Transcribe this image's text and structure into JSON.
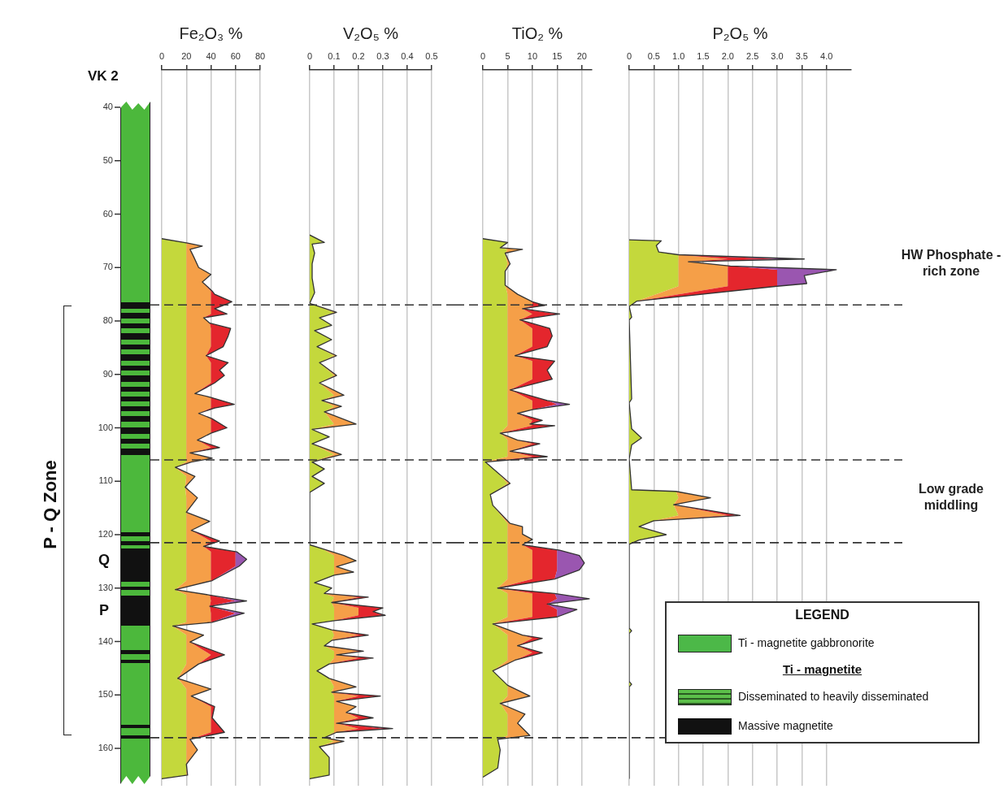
{
  "chart_data": [
    {
      "type": "area",
      "orientation": "horizontal",
      "stacked": true,
      "title": "Fe₂O₃ %",
      "xlim": [
        0,
        80
      ],
      "xticks": [
        0,
        20,
        40,
        60,
        80
      ],
      "ylim": [
        167,
        33
      ],
      "yticks": [
        40,
        50,
        60,
        70,
        80,
        90,
        100,
        110,
        120,
        130,
        140,
        150,
        160
      ],
      "grid": "x",
      "x": [
        64.6,
        65.4,
        66,
        66.6,
        68,
        70,
        71.3,
        72.7,
        74.4,
        75,
        76.4,
        77.1,
        77.7,
        78.7,
        79.4,
        80.4,
        81.4,
        82.8,
        84.8,
        86.5,
        87.8,
        89.2,
        90.2,
        91.6,
        93.6,
        94.3,
        95.6,
        96.3,
        97.3,
        98.3,
        100,
        101,
        102.3,
        103.7,
        104.7,
        105.7,
        106.4,
        107.4,
        109.1,
        111.1,
        113.1,
        115.8,
        117.5,
        119.2,
        121.2,
        122.2,
        123.2,
        124.6,
        125.9,
        128.6,
        130.3,
        131.3,
        132.4,
        133.4,
        134.7,
        136.4,
        137.1,
        138.8,
        140.1,
        142.5,
        144.2,
        146.9,
        148.9,
        150.2,
        152.2,
        154.3,
        157,
        158.3,
        160.3,
        163,
        165,
        165.7
      ],
      "series": [
        {
          "color": "#c4d83c",
          "values": [
            0,
            20,
            20,
            20,
            20,
            20,
            20,
            20,
            20,
            20,
            20,
            20,
            20,
            20,
            20,
            20,
            20,
            20,
            20,
            20,
            20,
            20,
            20,
            20,
            20,
            20,
            20,
            20,
            20,
            20,
            20,
            20,
            20,
            20,
            20,
            20,
            20,
            11,
            20,
            19,
            20,
            20,
            20,
            20,
            20,
            20,
            20,
            20,
            20,
            20,
            11,
            20,
            20,
            20,
            20,
            20,
            9,
            20,
            20,
            20,
            20,
            13,
            20,
            20,
            20,
            20,
            20,
            20,
            20,
            20,
            20,
            0
          ]
        },
        {
          "color": "#f59f48",
          "values": [
            0,
            1,
            13,
            3,
            6,
            10,
            20,
            13,
            20,
            20,
            20,
            20,
            20,
            20,
            14,
            19,
            20,
            20,
            20,
            16,
            20,
            20,
            20,
            20,
            7,
            20,
            20,
            20,
            10,
            20,
            20,
            20,
            9,
            20,
            3,
            20,
            4,
            0,
            7,
            0,
            9,
            0,
            19,
            4,
            20,
            14,
            20,
            20,
            20,
            20,
            0,
            19,
            20,
            19,
            20,
            20,
            0,
            14,
            3,
            20,
            10,
            0,
            20,
            4,
            20,
            20,
            20,
            3,
            9,
            0,
            1,
            0
          ]
        },
        {
          "color": "#e4262d",
          "values": [
            0,
            0,
            0,
            0,
            0,
            0,
            0,
            0,
            1,
            3,
            17,
            10,
            3,
            13,
            0,
            0,
            16,
            14,
            10,
            0,
            14,
            7,
            11,
            3,
            0,
            0,
            19,
            3,
            0,
            1,
            13,
            0,
            0,
            7,
            0,
            1,
            0,
            0,
            0,
            0,
            0,
            0,
            0,
            0,
            7,
            0,
            20,
            20,
            20,
            1,
            0,
            0,
            20,
            0,
            20,
            1,
            0,
            0,
            0,
            11,
            0,
            0,
            0,
            0,
            3,
            1,
            11,
            0,
            0,
            0,
            0,
            0
          ]
        },
        {
          "color": "#9a56b0",
          "values": [
            0,
            0,
            0,
            0,
            0,
            0,
            0,
            0,
            0,
            0,
            0,
            0,
            0,
            0,
            0,
            0,
            0,
            0,
            0,
            0,
            0,
            0,
            0,
            0,
            0,
            0,
            0,
            0,
            0,
            0,
            0,
            0,
            0,
            0,
            0,
            0,
            0,
            0,
            0,
            0,
            0,
            0,
            0,
            0,
            0,
            0,
            1,
            9,
            3,
            0,
            0,
            0,
            9,
            0,
            7,
            0,
            0,
            0,
            0,
            0,
            0,
            0,
            0,
            0,
            0,
            0,
            0,
            0,
            0,
            0,
            0,
            0
          ]
        }
      ],
      "ref_lines": [
        {
          "axis": "y",
          "value": 77,
          "line_style": "dashed",
          "color": "#333333"
        },
        {
          "axis": "y",
          "value": 106,
          "line_style": "dashed",
          "color": "#333333"
        },
        {
          "axis": "y",
          "value": 121.5,
          "line_style": "dashed",
          "color": "#333333"
        },
        {
          "axis": "y",
          "value": 158,
          "line_style": "dashed",
          "color": "#333333"
        }
      ]
    },
    {
      "type": "area",
      "orientation": "horizontal",
      "stacked": true,
      "title": "V₂O₅ %",
      "xlim": [
        0,
        0.5
      ],
      "xticks": [
        0,
        0.1,
        0.2,
        0.3,
        0.4,
        0.5
      ],
      "ylim": [
        167,
        33
      ],
      "tick_labels": "x",
      "grid": "x",
      "x": [
        63.9,
        65.3,
        65.6,
        67.3,
        69.3,
        72,
        74.7,
        76.7,
        78.4,
        79.4,
        80.8,
        81.8,
        83.5,
        84.8,
        86.5,
        87.8,
        90.2,
        91.6,
        93.9,
        94.9,
        96,
        97,
        99.3,
        100.3,
        101.7,
        103,
        105,
        106.4,
        107.7,
        109.1,
        110.4,
        112.1,
        121.9,
        122.6,
        123.9,
        124.9,
        126,
        127,
        127.6,
        129,
        130,
        131,
        131.7,
        132.7,
        133.7,
        134.4,
        135.1,
        136.1,
        136.7,
        137.8,
        138.8,
        139.8,
        140.8,
        141.8,
        142.5,
        143.1,
        144.2,
        145.5,
        146.9,
        148.5,
        149.5,
        150.2,
        151.2,
        152.2,
        153.3,
        154.3,
        155.3,
        156.3,
        157,
        158,
        158.7,
        159.7,
        161.7,
        165,
        165.7
      ],
      "series": [
        {
          "color": "#c4d83c",
          "values": [
            0,
            0.06,
            0.01,
            0.02,
            0.01,
            0.01,
            0.02,
            0,
            0.1,
            0.04,
            0.09,
            0.02,
            0.09,
            0.03,
            0.1,
            0.04,
            0.1,
            0.04,
            0.1,
            0.05,
            0.1,
            0.06,
            0.1,
            0.01,
            0.08,
            0.01,
            0.1,
            0.01,
            0.06,
            0.01,
            0.06,
            0,
            0,
            0.05,
            0.1,
            0.1,
            0.1,
            0.1,
            0.1,
            0.02,
            0.09,
            0.06,
            0.1,
            0.09,
            0.1,
            0.1,
            0.1,
            0.1,
            0.01,
            0.09,
            0.1,
            0.09,
            0.06,
            0.1,
            0.1,
            0.1,
            0.08,
            0.03,
            0.08,
            0.1,
            0.09,
            0.1,
            0.1,
            0.1,
            0.1,
            0.1,
            0.1,
            0.1,
            0.1,
            0.06,
            0.1,
            0.04,
            0.08,
            0.08,
            0
          ]
        },
        {
          "color": "#f59f48",
          "values": [
            0,
            0,
            0,
            0,
            0,
            0,
            0,
            0,
            0.01,
            0,
            0,
            0,
            0,
            0,
            0.01,
            0,
            0.01,
            0,
            0.04,
            0,
            0.03,
            0,
            0.09,
            0,
            0,
            0,
            0.03,
            0,
            0,
            0,
            0,
            0,
            0,
            0,
            0.04,
            0.09,
            0.01,
            0.08,
            0,
            0,
            0,
            0,
            0.1,
            0,
            0.1,
            0.1,
            0.1,
            0,
            0,
            0,
            0.1,
            0,
            0,
            0.1,
            0.01,
            0.1,
            0,
            0,
            0,
            0.09,
            0,
            0.1,
            0.01,
            0.09,
            0.05,
            0.1,
            0.01,
            0.1,
            0.01,
            0,
            0.04,
            0,
            0,
            0,
            0
          ]
        },
        {
          "color": "#e4262d",
          "values": [
            0,
            0,
            0,
            0,
            0,
            0,
            0,
            0,
            0,
            0,
            0,
            0,
            0,
            0,
            0,
            0,
            0,
            0,
            0,
            0,
            0,
            0,
            0,
            0,
            0,
            0,
            0,
            0,
            0,
            0,
            0,
            0,
            0,
            0,
            0,
            0,
            0,
            0,
            0,
            0,
            0,
            0,
            0.04,
            0,
            0.1,
            0.06,
            0.1,
            0,
            0,
            0,
            0.04,
            0,
            0,
            0.02,
            0,
            0.06,
            0,
            0,
            0,
            0,
            0,
            0.09,
            0,
            0,
            0,
            0.06,
            0,
            0.1,
            0,
            0,
            0,
            0,
            0,
            0,
            0
          ]
        },
        {
          "color": "#a3213f",
          "values": [
            0,
            0,
            0,
            0,
            0,
            0,
            0,
            0,
            0,
            0,
            0,
            0,
            0,
            0,
            0,
            0,
            0,
            0,
            0,
            0,
            0,
            0,
            0,
            0,
            0,
            0,
            0,
            0,
            0,
            0,
            0,
            0,
            0,
            0,
            0,
            0,
            0,
            0,
            0,
            0,
            0,
            0,
            0,
            0,
            0,
            0,
            0.01,
            0,
            0,
            0,
            0,
            0,
            0,
            0,
            0,
            0,
            0,
            0,
            0,
            0,
            0,
            0,
            0,
            0,
            0,
            0,
            0,
            0.04,
            0,
            0,
            0,
            0,
            0,
            0,
            0
          ]
        }
      ],
      "ref_lines": [
        {
          "axis": "y",
          "value": 77,
          "line_style": "dashed",
          "color": "#333333"
        },
        {
          "axis": "y",
          "value": 106,
          "line_style": "dashed",
          "color": "#333333"
        },
        {
          "axis": "y",
          "value": 121.5,
          "line_style": "dashed",
          "color": "#333333"
        },
        {
          "axis": "y",
          "value": 158,
          "line_style": "dashed",
          "color": "#333333"
        }
      ]
    },
    {
      "type": "area",
      "orientation": "horizontal",
      "stacked": true,
      "title": "TiO₂ %",
      "xlim": [
        0,
        22
      ],
      "xticks": [
        0,
        5,
        10,
        15,
        20
      ],
      "ylim": [
        167,
        33
      ],
      "tick_labels": "x",
      "grid": "x",
      "x": [
        64.6,
        65.3,
        66.3,
        66.6,
        67.3,
        69.3,
        70.7,
        73.3,
        75,
        76.4,
        77.1,
        77.7,
        78.7,
        79.8,
        81.4,
        82.8,
        84.8,
        86.5,
        87.5,
        89.2,
        90.9,
        92.9,
        94.9,
        95.6,
        96.6,
        97.3,
        98.6,
        99.3,
        99.6,
        101,
        102.3,
        103,
        104.4,
        105.4,
        106.4,
        108.4,
        110.4,
        112.5,
        114.5,
        117.9,
        118.5,
        119.9,
        120.9,
        121.9,
        122.9,
        123.9,
        125.3,
        126.6,
        128.3,
        130,
        131,
        132,
        133,
        134,
        135.4,
        136.7,
        138.8,
        139.4,
        140.8,
        142.1,
        143.5,
        145.5,
        148.2,
        150.2,
        151.6,
        153.6,
        155.3,
        157.6,
        158.3,
        160.3,
        163.7,
        165.4
      ],
      "series": [
        {
          "color": "#c4d83c",
          "values": [
            0,
            5,
            3.5,
            5,
            4.5,
            5,
            4.5,
            4.5,
            5,
            5,
            5,
            5,
            5,
            5,
            5,
            5,
            5,
            5,
            5,
            5,
            5,
            5,
            5,
            5,
            5,
            5,
            5,
            5,
            5,
            3.5,
            5,
            5,
            5,
            5,
            0.5,
            3,
            5,
            1.5,
            2,
            5,
            5,
            5,
            5,
            5,
            5,
            5,
            5,
            5,
            5,
            3,
            5,
            5,
            5,
            5,
            5,
            2,
            5,
            5,
            5,
            5,
            5,
            2,
            5,
            5,
            3.5,
            5,
            5,
            5,
            3,
            3.5,
            3,
            0
          ]
        },
        {
          "color": "#f59f48",
          "values": [
            0,
            0,
            0,
            3,
            0,
            0.5,
            0,
            0,
            2,
            5,
            5,
            3,
            5,
            2.5,
            5,
            5,
            5,
            1.5,
            5,
            5,
            5,
            0.5,
            5,
            5,
            5,
            2,
            5,
            4.5,
            5,
            0,
            2,
            5,
            0.5,
            5,
            0,
            0,
            0.5,
            0,
            0,
            0.5,
            3,
            3,
            5,
            3,
            5,
            5,
            5,
            5,
            5,
            0,
            5,
            5,
            5,
            5,
            5,
            0,
            3,
            5,
            2,
            5,
            1.5,
            0,
            0,
            4.5,
            0,
            3.5,
            2,
            4.5,
            0,
            0,
            0,
            0
          ]
        },
        {
          "color": "#e4262d",
          "values": [
            0,
            0,
            0,
            0,
            0,
            0,
            0,
            0,
            0,
            0,
            2.5,
            0,
            5,
            0,
            3.5,
            4,
            3,
            0,
            4.5,
            3,
            4,
            0,
            3,
            5,
            0,
            0,
            2,
            0,
            4.5,
            0,
            0,
            1.5,
            0,
            3,
            0,
            0,
            0,
            0,
            0,
            0,
            0,
            0,
            0,
            0,
            5,
            5,
            5,
            5,
            4.5,
            0,
            4.5,
            5,
            3,
            5,
            5,
            0,
            0,
            2,
            0,
            2,
            0,
            0,
            0,
            0,
            0,
            0,
            0,
            0,
            0,
            0,
            0,
            0
          ]
        },
        {
          "color": "#9a56b0",
          "values": [
            0,
            0,
            0,
            0,
            0,
            0,
            0,
            0,
            0,
            0,
            0,
            0,
            0.5,
            0,
            0,
            0,
            0,
            0,
            0,
            0,
            0,
            0,
            0,
            2.5,
            0,
            0,
            0,
            0,
            0,
            0,
            0,
            0,
            0,
            0,
            0,
            0,
            0,
            0,
            0,
            0,
            0,
            0,
            0,
            0,
            0.5,
            4.5,
            5.5,
            4.5,
            0,
            0,
            0,
            6.5,
            0,
            4,
            0,
            0,
            0,
            0,
            0,
            0,
            0,
            0,
            0,
            0,
            0,
            0,
            0,
            0,
            0,
            0,
            0,
            0
          ]
        }
      ],
      "ref_lines": [
        {
          "axis": "y",
          "value": 77,
          "line_style": "dashed",
          "color": "#333333"
        },
        {
          "axis": "y",
          "value": 106,
          "line_style": "dashed",
          "color": "#333333"
        },
        {
          "axis": "y",
          "value": 121.5,
          "line_style": "dashed",
          "color": "#333333"
        },
        {
          "axis": "y",
          "value": 158,
          "line_style": "dashed",
          "color": "#333333"
        }
      ]
    },
    {
      "type": "area",
      "orientation": "horizontal",
      "stacked": true,
      "title": "P₂O₅ %",
      "xlim": [
        0,
        4.5
      ],
      "xticks": [
        0,
        {
          "value": 0.5,
          "label": "0.5"
        },
        {
          "value": 1,
          "label": "1.0"
        },
        {
          "value": 1.5,
          "label": "1.5"
        },
        {
          "value": 2,
          "label": "2.0"
        },
        {
          "value": 2.5,
          "label": "2.5"
        },
        {
          "value": 3,
          "label": "3.0"
        },
        {
          "value": 3.5,
          "label": "3.5"
        },
        {
          "value": 4,
          "label": "4.0"
        }
      ],
      "ylim": [
        167,
        33
      ],
      "tick_labels": "x",
      "grid": "x",
      "x": [
        64.8,
        65,
        65.9,
        67.1,
        67.6,
        68.4,
        68.9,
        69.7,
        70.4,
        71.5,
        73,
        73.5,
        76.3,
        77.3,
        79.3,
        79.8,
        94.6,
        95.3,
        100.2,
        101.9,
        103.2,
        105.8,
        111.6,
        111.9,
        113.1,
        114.4,
        116.4,
        117.4,
        118.5,
        120,
        121,
        121.8,
        137.5,
        138,
        138.5,
        147.5,
        148,
        148.5,
        165.7
      ],
      "series": [
        {
          "color": "#c4d83c",
          "values": [
            0,
            0.65,
            0.55,
            0.6,
            1,
            1,
            1,
            1,
            1,
            1,
            1,
            1,
            0.15,
            0,
            0.05,
            0,
            0.05,
            0,
            0.05,
            0.25,
            0.05,
            0,
            0.05,
            0.95,
            1,
            0.9,
            1,
            0.5,
            0.2,
            0.75,
            0.2,
            0,
            0,
            0.05,
            0,
            0,
            0.05,
            0,
            0
          ]
        },
        {
          "color": "#f59f48",
          "values": [
            0,
            0,
            0,
            0,
            0,
            1,
            0.2,
            1,
            1,
            1,
            1,
            1,
            0,
            0,
            0,
            0,
            0,
            0,
            0,
            0,
            0,
            0,
            0,
            0,
            0.65,
            0,
            1,
            0,
            0,
            0,
            0,
            0,
            0,
            0,
            0,
            0,
            0,
            0,
            0
          ]
        },
        {
          "color": "#e4262d",
          "values": [
            0,
            0,
            0,
            0,
            0,
            1,
            0,
            0.05,
            1,
            1,
            1,
            1,
            0,
            0,
            0,
            0,
            0,
            0,
            0,
            0,
            0,
            0,
            0,
            0,
            0,
            0,
            0.25,
            0,
            0,
            0,
            0,
            0,
            0,
            0,
            0,
            0,
            0,
            0,
            0
          ]
        },
        {
          "color": "#9a56b0",
          "values": [
            0,
            0,
            0,
            0,
            0,
            0.55,
            0,
            0,
            1.2,
            0.55,
            0.6,
            0,
            0,
            0,
            0,
            0,
            0,
            0,
            0,
            0,
            0,
            0,
            0,
            0,
            0,
            0,
            0,
            0,
            0,
            0,
            0,
            0,
            0,
            0,
            0,
            0,
            0,
            0,
            0
          ]
        }
      ],
      "ref_lines": [
        {
          "axis": "y",
          "value": 77,
          "line_style": "dashed",
          "color": "#333333"
        },
        {
          "axis": "y",
          "value": 106,
          "line_style": "dashed",
          "color": "#333333"
        },
        {
          "axis": "y",
          "value": 121.5,
          "line_style": "dashed",
          "color": "#333333"
        },
        {
          "axis": "y",
          "value": 158,
          "line_style": "dashed",
          "color": "#333333"
        }
      ],
      "annotations": [
        "HW Phosphate - rich zone",
        "Low grade middling"
      ]
    },
    {
      "type": "other",
      "annotations": [
        "VK 2",
        "P - Q Zone",
        "Q",
        "P",
        "LEGEND",
        "Ti - magnetite gabbronorite",
        "Ti - magnetite",
        "Disseminated to heavily disseminated",
        "Massive magnetite"
      ]
    }
  ]
}
